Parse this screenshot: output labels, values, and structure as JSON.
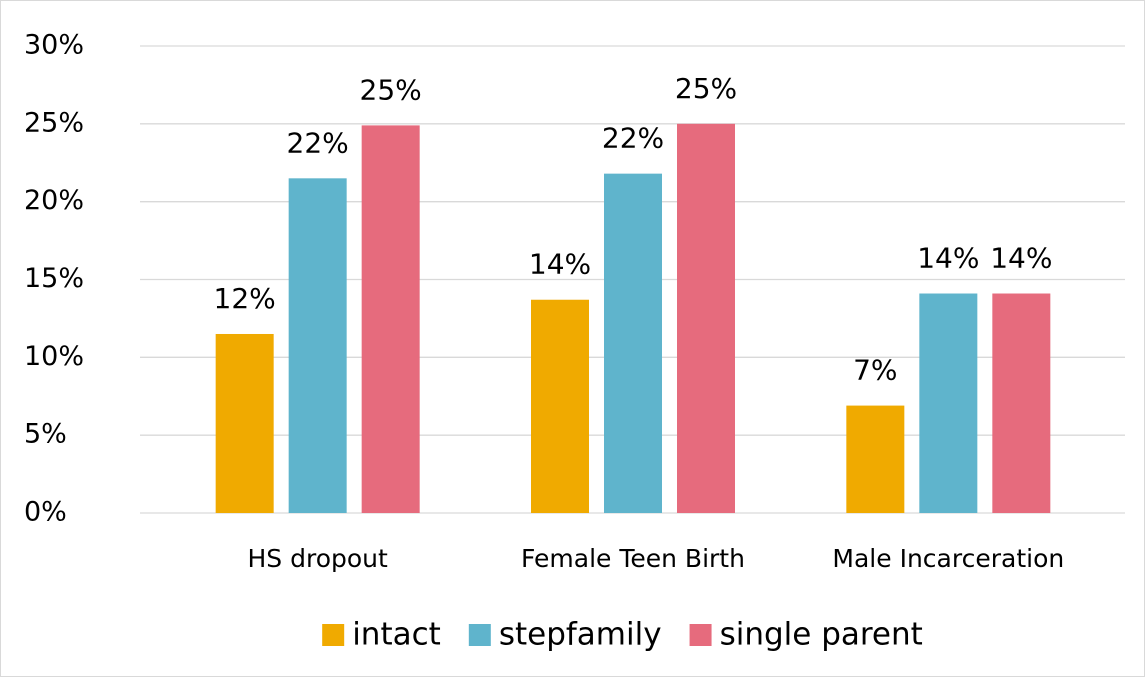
{
  "chart_data": {
    "type": "bar",
    "categories": [
      "HS dropout",
      "Female Teen Birth",
      "Male Incarceration"
    ],
    "series": [
      {
        "name": "intact",
        "color": "#f0aa00",
        "values": [
          11.5,
          13.7,
          6.9
        ],
        "value_labels": [
          "12%",
          "14%",
          "7%"
        ]
      },
      {
        "name": "stepfamily",
        "color": "#5fb4cc",
        "values": [
          21.5,
          21.8,
          14.1
        ],
        "value_labels": [
          "22%",
          "22%",
          "14%"
        ]
      },
      {
        "name": "single parent",
        "color": "#e66b7d",
        "values": [
          24.9,
          25.0,
          14.1
        ],
        "value_labels": [
          "25%",
          "25%",
          "14%"
        ]
      }
    ],
    "ylim": [
      0,
      30
    ],
    "yticks": [
      {
        "value": 0,
        "label": "0%"
      },
      {
        "value": 5,
        "label": "5%"
      },
      {
        "value": 10,
        "label": "10%"
      },
      {
        "value": 15,
        "label": "15%"
      },
      {
        "value": 20,
        "label": "20%"
      },
      {
        "value": 25,
        "label": "25%"
      },
      {
        "value": 30,
        "label": "30%"
      }
    ],
    "grid": true,
    "legend": "bottom"
  }
}
